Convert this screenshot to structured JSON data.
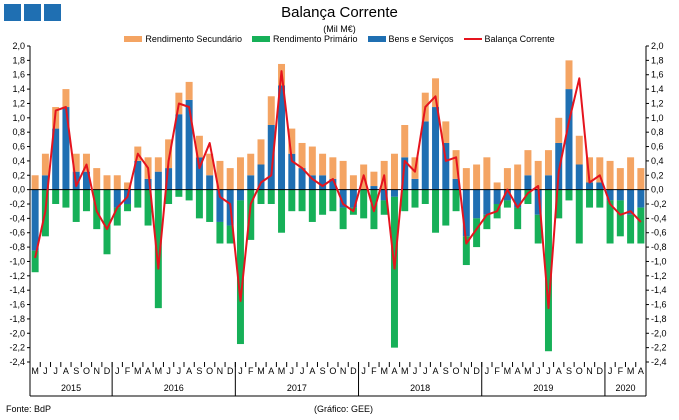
{
  "header": {
    "title": "Balança Corrente",
    "subtitle": "(Mil M€)"
  },
  "footer": {
    "source": "Fonte: BdP",
    "credit": "(Gráfico: GEE)"
  },
  "colors": {
    "secundario": "#f4a463",
    "primario": "#16b058",
    "bens": "#1f6fb2",
    "balanca": "#e5141e",
    "axis": "#000000",
    "grid": "#cccccc"
  },
  "chart_data": {
    "type": "bar",
    "title": "Balança Corrente",
    "subtitle": "(Mil M€)",
    "ylim": [
      -2.4,
      2.0
    ],
    "yticks": [
      "2,0",
      "1,8",
      "1,6",
      "1,4",
      "1,2",
      "1,0",
      "0,8",
      "0,6",
      "0,4",
      "0,2",
      "0,0",
      "-0,2",
      "-0,4",
      "-0,6",
      "-0,8",
      "-1,0",
      "-1,2",
      "-1,4",
      "-1,6",
      "-1,8",
      "-2,0",
      "-2,2",
      "-2,4"
    ],
    "months": [
      "M",
      "J",
      "J",
      "A",
      "S",
      "O",
      "N",
      "D",
      "J",
      "F",
      "M",
      "A",
      "M",
      "J",
      "J",
      "A",
      "S",
      "O",
      "N",
      "D",
      "J",
      "F",
      "M",
      "A",
      "M",
      "J",
      "J",
      "A",
      "S",
      "O",
      "N",
      "D",
      "J",
      "F",
      "M",
      "A",
      "M",
      "J",
      "J",
      "A",
      "S",
      "O",
      "N",
      "D",
      "J",
      "F",
      "M",
      "A",
      "M",
      "J",
      "J",
      "A",
      "S",
      "O",
      "N",
      "D",
      "J",
      "F",
      "M",
      "A"
    ],
    "years": [
      {
        "label": "2015",
        "start": 0,
        "end": 7
      },
      {
        "label": "2016",
        "start": 8,
        "end": 19
      },
      {
        "label": "2017",
        "start": 20,
        "end": 31
      },
      {
        "label": "2018",
        "start": 32,
        "end": 43
      },
      {
        "label": "2019",
        "start": 44,
        "end": 55
      },
      {
        "label": "2020",
        "start": 56,
        "end": 59
      }
    ],
    "series": [
      {
        "name": "Rendimento Secundário",
        "values": [
          0.2,
          0.3,
          0.3,
          0.25,
          0.25,
          0.25,
          0.3,
          0.2,
          0.2,
          0.1,
          0.2,
          0.3,
          0.2,
          0.4,
          0.3,
          0.25,
          0.3,
          0.3,
          0.4,
          0.3,
          0.45,
          0.3,
          0.35,
          0.4,
          0.3,
          0.35,
          0.35,
          0.4,
          0.3,
          0.3,
          0.4,
          0.2,
          0.35,
          0.2,
          0.4,
          0.5,
          0.45,
          0.3,
          0.4,
          0.4,
          0.3,
          0.4,
          0.3,
          0.35,
          0.45,
          0.1,
          0.3,
          0.35,
          0.35,
          0.4,
          0.35,
          0.35,
          0.4,
          0.4,
          0.35,
          0.35,
          0.4,
          0.3,
          0.45,
          0.3
        ]
      },
      {
        "name": "Rendimento Primário",
        "values": [
          -0.3,
          -0.65,
          -0.2,
          -0.25,
          -0.45,
          -0.3,
          -0.55,
          -0.9,
          -0.25,
          -0.1,
          -0.25,
          -0.5,
          -1.65,
          -0.2,
          -0.1,
          -0.15,
          -0.4,
          -0.45,
          -0.3,
          -0.25,
          -2.0,
          -0.7,
          -0.2,
          -0.2,
          -0.6,
          -0.3,
          -0.3,
          -0.45,
          -0.35,
          -0.3,
          -0.3,
          -0.1,
          -0.4,
          -0.55,
          -0.2,
          -2.1,
          -0.3,
          -0.25,
          -0.2,
          -0.6,
          -0.5,
          -0.3,
          -0.4,
          -0.4,
          -0.2,
          -0.2,
          -0.1,
          -0.3,
          -0.2,
          -0.4,
          -2.25,
          -0.4,
          -0.15,
          -0.75,
          -0.25,
          -0.25,
          -0.6,
          -0.5,
          -0.4,
          -0.5
        ]
      },
      {
        "name": "Bens e Serviços",
        "values": [
          -0.85,
          0.2,
          0.85,
          1.15,
          0.25,
          0.25,
          0.0,
          0.0,
          -0.25,
          -0.2,
          0.4,
          0.15,
          0.25,
          0.3,
          1.05,
          1.25,
          0.45,
          0.2,
          -0.45,
          -0.5,
          -0.15,
          0.2,
          0.35,
          0.9,
          1.45,
          0.5,
          0.3,
          0.2,
          0.2,
          0.15,
          -0.25,
          -0.25,
          0.0,
          0.05,
          -0.15,
          -0.1,
          0.45,
          0.15,
          0.95,
          1.15,
          0.65,
          0.15,
          -0.65,
          -0.4,
          -0.35,
          -0.2,
          -0.15,
          -0.25,
          0.2,
          -0.35,
          0.2,
          0.65,
          1.4,
          0.35,
          0.1,
          0.1,
          -0.15,
          -0.15,
          -0.35,
          -0.25
        ]
      },
      {
        "name": "Balança Corrente",
        "values": [
          -0.95,
          -0.3,
          1.1,
          1.15,
          0.05,
          0.35,
          -0.3,
          -0.55,
          -0.25,
          -0.1,
          0.5,
          0.3,
          -1.1,
          0.4,
          1.2,
          1.15,
          0.3,
          0.65,
          -0.1,
          -0.2,
          -1.55,
          -0.2,
          0.1,
          0.2,
          1.65,
          0.4,
          0.3,
          0.15,
          0.05,
          0.15,
          -0.2,
          -0.3,
          0.2,
          -0.3,
          0.2,
          -1.1,
          0.4,
          0.25,
          1.15,
          1.3,
          0.4,
          0.45,
          -0.75,
          -0.55,
          -0.35,
          -0.3,
          0.0,
          -0.25,
          -0.05,
          0.05,
          -1.65,
          0.25,
          0.95,
          1.55,
          0.1,
          0.2,
          -0.2,
          -0.35,
          -0.3,
          -0.45
        ]
      }
    ]
  }
}
